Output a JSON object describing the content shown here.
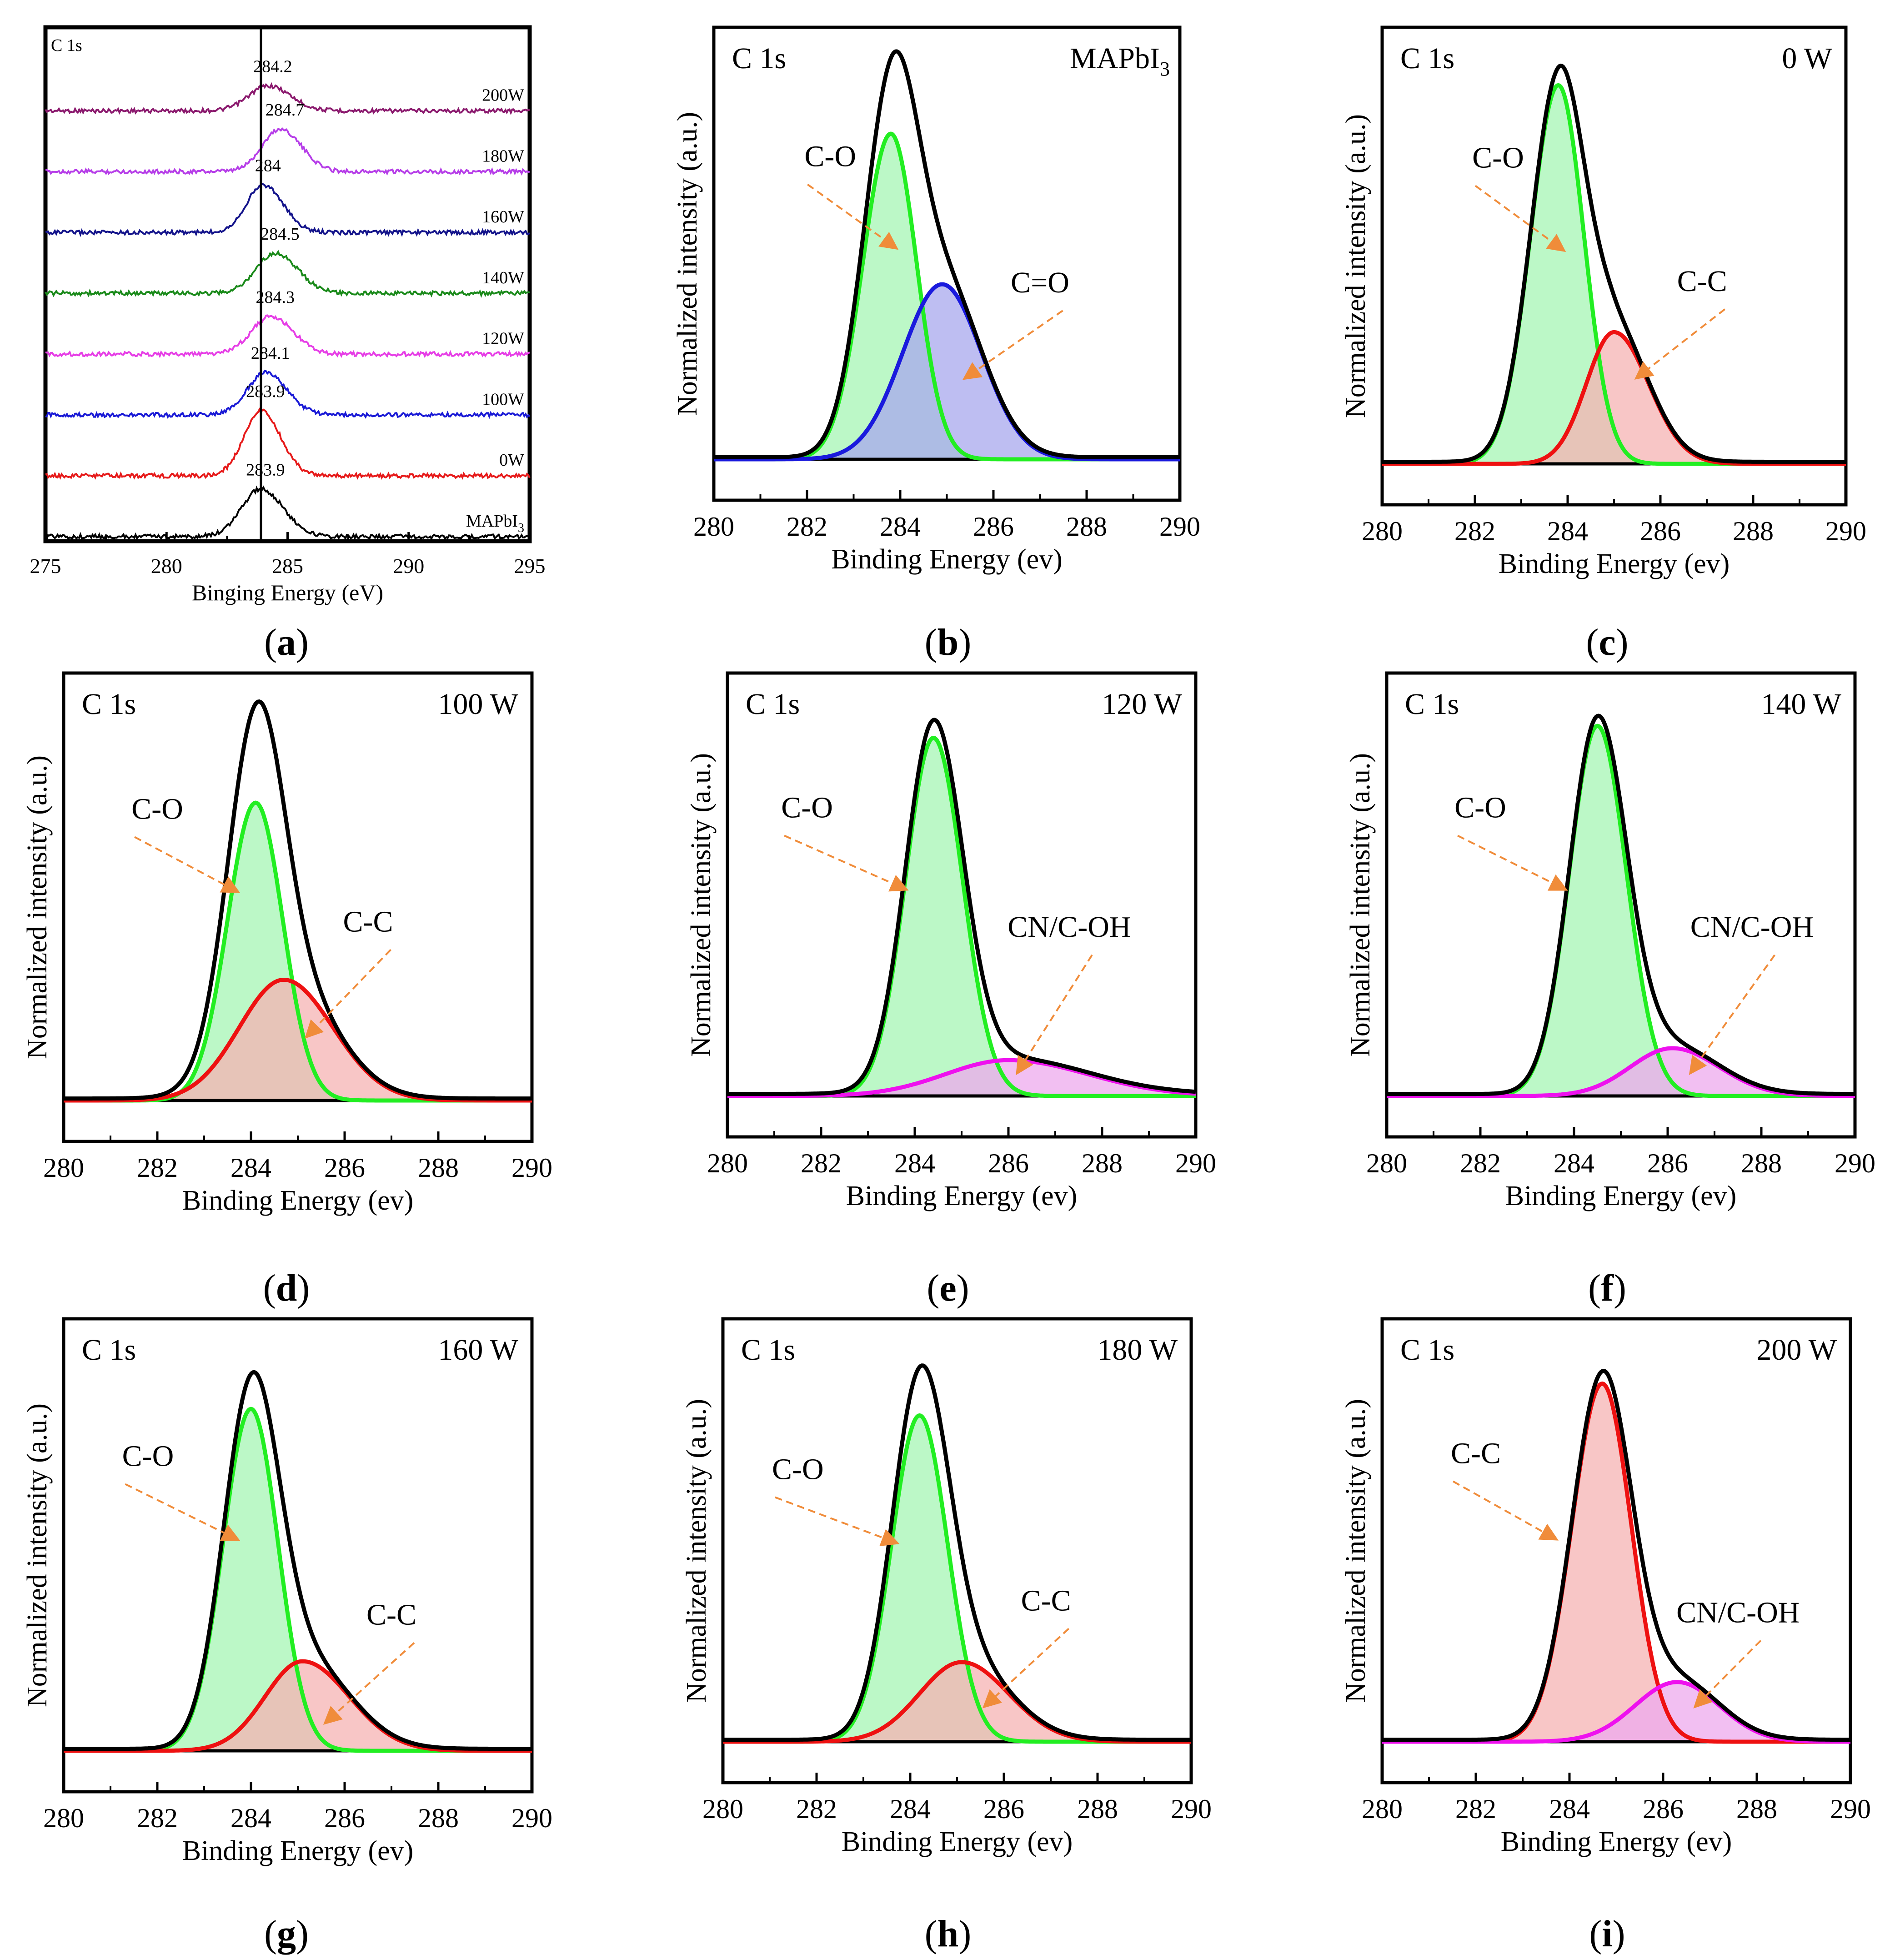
{
  "colors": {
    "envelope": "#000000",
    "co": "#22ee22",
    "co_fill": "#a6f5b4",
    "cc": "#ee1111",
    "cc_fill": "#f5b3b3",
    "cdo": "#1a1add",
    "cdo_fill": "#a8a8ee",
    "cn": "#ee11ee",
    "cn_fill": "#eeaaee",
    "arrow": "#f08c3a",
    "a_vline": "#000000"
  },
  "chart_data": [
    {
      "type": "line",
      "letter": "a",
      "corner_label": "C 1s",
      "xlabel": "Binging Energy (eV)",
      "ylabel": "",
      "xlim": [
        275,
        295
      ],
      "xticks": [
        "275",
        "280",
        "285",
        "290",
        "295"
      ],
      "vline": 283.9,
      "series": [
        {
          "name": "200W",
          "color": "#8b1a6e",
          "peak_x": 284.2,
          "peak_label": "284.2",
          "amplitude": 0.5,
          "width": 0.8
        },
        {
          "name": "180W",
          "color": "#b63ee8",
          "peak_x": 284.7,
          "peak_label": "284.7",
          "amplitude": 0.85,
          "width": 0.75
        },
        {
          "name": "160W",
          "color": "#14148b",
          "peak_x": 284.0,
          "peak_label": "284",
          "amplitude": 0.95,
          "width": 0.7
        },
        {
          "name": "140W",
          "color": "#1a8a1a",
          "peak_x": 284.5,
          "peak_label": "284.5",
          "amplitude": 0.8,
          "width": 0.8
        },
        {
          "name": "120W",
          "color": "#e63ee6",
          "peak_x": 284.3,
          "peak_label": "284.3",
          "amplitude": 0.75,
          "width": 0.8
        },
        {
          "name": "100W",
          "color": "#1a1ad6",
          "peak_x": 284.1,
          "peak_label": "284.1",
          "amplitude": 0.85,
          "width": 0.75
        },
        {
          "name": "0W",
          "color": "#e61a1a",
          "peak_x": 283.9,
          "peak_label": "283.9",
          "amplitude": 1.3,
          "width": 0.7
        },
        {
          "name": "MAPbI3",
          "name_main": "MAPbI",
          "name_sub": "3",
          "color": "#000000",
          "peak_x": 283.9,
          "peak_label": "283.9",
          "amplitude": 0.95,
          "width": 0.8
        }
      ]
    },
    {
      "type": "area",
      "letter": "b",
      "corner_label": "C 1s",
      "condition": "MAPbI3",
      "condition_main": "MAPbI",
      "condition_sub": "3",
      "xlabel": "Binding Energy (ev)",
      "ylabel": "Normalized intensity (a.u.)",
      "xlim": [
        280,
        290
      ],
      "xticks": [
        "280",
        "282",
        "284",
        "286",
        "288",
        "290"
      ],
      "components": [
        {
          "name": "C-O",
          "kind": "co",
          "center": 283.8,
          "amplitude": 0.8,
          "sigma_left": 0.6,
          "sigma_right": 0.55
        },
        {
          "name": "C=O",
          "kind": "cdo",
          "center": 284.9,
          "amplitude": 0.43,
          "sigma_left": 0.85,
          "sigma_right": 0.85
        }
      ],
      "labels": [
        {
          "text": "C-O",
          "tx": 282.5,
          "ty": 0.72,
          "ax": 283.9,
          "ay": 0.52
        },
        {
          "text": "C=O",
          "tx": 287.0,
          "ty": 0.41,
          "ax": 285.4,
          "ay": 0.2
        }
      ]
    },
    {
      "type": "area",
      "letter": "c",
      "corner_label": "C 1s",
      "condition": "0 W",
      "xlabel": "Binding Energy (ev)",
      "ylabel": "Normalized intensity (a.u.)",
      "xlim": [
        280,
        290
      ],
      "xticks": [
        "280",
        "282",
        "284",
        "286",
        "288",
        "290"
      ],
      "components": [
        {
          "name": "C-O",
          "kind": "co",
          "center": 283.8,
          "amplitude": 0.92,
          "sigma_left": 0.6,
          "sigma_right": 0.55
        },
        {
          "name": "C-C",
          "kind": "cc",
          "center": 285.0,
          "amplitude": 0.32,
          "sigma_left": 0.6,
          "sigma_right": 0.75
        }
      ],
      "labels": [
        {
          "text": "C-O",
          "tx": 282.5,
          "ty": 0.72,
          "ax": 283.9,
          "ay": 0.52
        },
        {
          "text": "C-C",
          "tx": 286.9,
          "ty": 0.42,
          "ax": 285.5,
          "ay": 0.21
        }
      ]
    },
    {
      "type": "area",
      "letter": "d",
      "corner_label": "C 1s",
      "condition": "100 W",
      "xlabel": "Binding Energy (ev)",
      "ylabel": "Normalized intensity (a.u.)",
      "xlim": [
        280,
        290
      ],
      "xticks": [
        "280",
        "282",
        "284",
        "286",
        "288",
        "290"
      ],
      "components": [
        {
          "name": "C-O",
          "kind": "co",
          "center": 284.1,
          "amplitude": 0.74,
          "sigma_left": 0.6,
          "sigma_right": 0.58
        },
        {
          "name": "C-C",
          "kind": "cc",
          "center": 284.7,
          "amplitude": 0.3,
          "sigma_left": 0.95,
          "sigma_right": 1.05
        }
      ],
      "labels": [
        {
          "text": "C-O",
          "tx": 282.0,
          "ty": 0.7,
          "ax": 283.7,
          "ay": 0.52
        },
        {
          "text": "C-C",
          "tx": 286.5,
          "ty": 0.42,
          "ax": 285.2,
          "ay": 0.16
        }
      ]
    },
    {
      "type": "area",
      "letter": "e",
      "corner_label": "C 1s",
      "condition": "120 W",
      "xlabel": "Binding Energy (ev)",
      "ylabel": "Normalized intensity (a.u.)",
      "xlim": [
        280,
        290
      ],
      "xticks": [
        "280",
        "282",
        "284",
        "286",
        "288",
        "290"
      ],
      "components": [
        {
          "name": "C-O",
          "kind": "co",
          "center": 284.4,
          "amplitude": 0.9,
          "sigma_left": 0.6,
          "sigma_right": 0.62
        },
        {
          "name": "CN/C-OH",
          "kind": "cn",
          "center": 286.0,
          "amplitude": 0.09,
          "sigma_left": 1.35,
          "sigma_right": 1.7
        }
      ],
      "labels": [
        {
          "text": "C-O",
          "tx": 281.7,
          "ty": 0.7,
          "ax": 283.8,
          "ay": 0.52
        },
        {
          "text": "CN/C-OH",
          "tx": 287.3,
          "ty": 0.4,
          "ax": 286.2,
          "ay": 0.06
        }
      ]
    },
    {
      "type": "area",
      "letter": "f",
      "corner_label": "C 1s",
      "condition": "140 W",
      "xlabel": "Binding Energy (ev)",
      "ylabel": "Normalized intensity (a.u.)",
      "xlim": [
        280,
        290
      ],
      "xticks": [
        "280",
        "282",
        "284",
        "286",
        "288",
        "290"
      ],
      "components": [
        {
          "name": "C-O",
          "kind": "co",
          "center": 284.5,
          "amplitude": 0.93,
          "sigma_left": 0.6,
          "sigma_right": 0.62
        },
        {
          "name": "CN/C-OH",
          "kind": "cn",
          "center": 286.1,
          "amplitude": 0.12,
          "sigma_left": 0.9,
          "sigma_right": 1.0
        }
      ],
      "labels": [
        {
          "text": "C-O",
          "tx": 282.0,
          "ty": 0.7,
          "ax": 283.8,
          "ay": 0.52
        },
        {
          "text": "CN/C-OH",
          "tx": 287.8,
          "ty": 0.4,
          "ax": 286.5,
          "ay": 0.06
        }
      ]
    },
    {
      "type": "area",
      "letter": "g",
      "corner_label": "C 1s",
      "condition": "160 W",
      "xlabel": "Binding Energy (ev)",
      "ylabel": "Normalized intensity (a.u.)",
      "xlim": [
        280,
        290
      ],
      "xticks": [
        "280",
        "282",
        "284",
        "286",
        "288",
        "290"
      ],
      "components": [
        {
          "name": "C-O",
          "kind": "co",
          "center": 284.0,
          "amplitude": 0.84,
          "sigma_left": 0.6,
          "sigma_right": 0.58
        },
        {
          "name": "C-C",
          "kind": "cc",
          "center": 285.1,
          "amplitude": 0.22,
          "sigma_left": 0.8,
          "sigma_right": 1.0
        }
      ],
      "labels": [
        {
          "text": "C-O",
          "tx": 281.8,
          "ty": 0.7,
          "ax": 283.7,
          "ay": 0.52
        },
        {
          "text": "C-C",
          "tx": 287.0,
          "ty": 0.31,
          "ax": 285.6,
          "ay": 0.07
        }
      ]
    },
    {
      "type": "area",
      "letter": "h",
      "corner_label": "C 1s",
      "condition": "180 W",
      "xlabel": "Binding Energy (ev)",
      "ylabel": "Normalized intensity (a.u.)",
      "xlim": [
        280,
        290
      ],
      "xticks": [
        "280",
        "282",
        "284",
        "286",
        "288",
        "290"
      ],
      "components": [
        {
          "name": "C-O",
          "kind": "co",
          "center": 284.2,
          "amplitude": 0.82,
          "sigma_left": 0.6,
          "sigma_right": 0.6
        },
        {
          "name": "C-C",
          "kind": "cc",
          "center": 285.1,
          "amplitude": 0.2,
          "sigma_left": 0.9,
          "sigma_right": 1.0
        }
      ],
      "labels": [
        {
          "text": "C-O",
          "tx": 281.6,
          "ty": 0.66,
          "ax": 283.7,
          "ay": 0.5
        },
        {
          "text": "C-C",
          "tx": 286.9,
          "ty": 0.33,
          "ax": 285.6,
          "ay": 0.09
        }
      ]
    },
    {
      "type": "area",
      "letter": "i",
      "corner_label": "C 1s",
      "condition": "200 W",
      "xlabel": "Binding Energy (ev)",
      "ylabel": "Normalized intensity (a.u.)",
      "xlim": [
        280,
        290
      ],
      "xticks": [
        "280",
        "282",
        "284",
        "286",
        "288",
        "290"
      ],
      "components": [
        {
          "name": "C-C",
          "kind": "cc",
          "center": 284.7,
          "amplitude": 0.9,
          "sigma_left": 0.65,
          "sigma_right": 0.62
        },
        {
          "name": "CN/C-OH",
          "kind": "cn",
          "center": 286.3,
          "amplitude": 0.15,
          "sigma_left": 0.9,
          "sigma_right": 0.9
        }
      ],
      "labels": [
        {
          "text": "C-C",
          "tx": 282.0,
          "ty": 0.7,
          "ax": 283.7,
          "ay": 0.51
        },
        {
          "text": "CN/C-OH",
          "tx": 287.6,
          "ty": 0.3,
          "ax": 286.7,
          "ay": 0.09
        }
      ]
    }
  ]
}
